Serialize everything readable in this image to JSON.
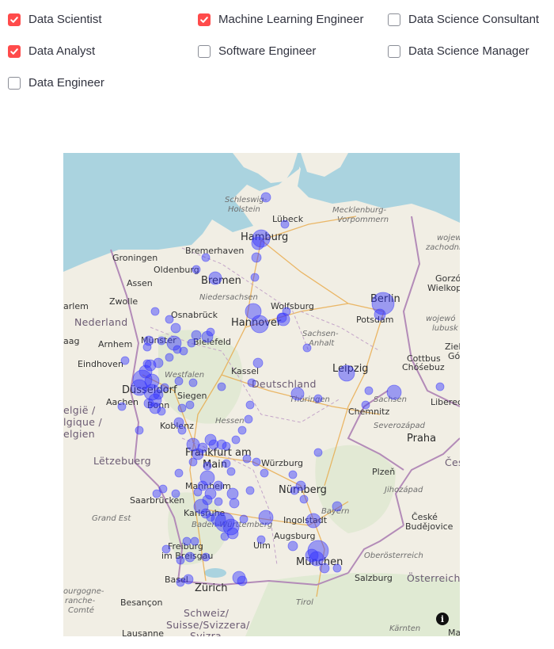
{
  "filters": [
    {
      "label": "Data Scientist",
      "checked": true
    },
    {
      "label": "Machine Learning Engineer",
      "checked": true
    },
    {
      "label": "Data Science Consultant",
      "checked": false
    },
    {
      "label": "Data Analyst",
      "checked": true
    },
    {
      "label": "Software Engineer",
      "checked": false
    },
    {
      "label": "Data Science Manager",
      "checked": false
    },
    {
      "label": "Data Engineer",
      "checked": false
    }
  ],
  "map": {
    "marker_color": "#3333ff",
    "info_icon": "info-icon",
    "labels": {
      "schleswig": "Schleswig-",
      "holstein": "Holstein",
      "luebeck": "Lübeck",
      "mecklenburg": "Mecklenburg-",
      "vorpommern": "Vorpommern",
      "hamburg": "Hamburg",
      "bremerhaven": "Bremerhaven",
      "groningen": "Groningen",
      "oldenburg": "Oldenburg",
      "bremen": "Bremen",
      "assen": "Assen",
      "zwolle": "Zwolle",
      "niedersachsen": "Niedersachsen",
      "wolfsburg": "Wolfsburg",
      "berlin": "Berlin",
      "potsdam": "Potsdam",
      "nederland": "Nederland",
      "osnabrueck": "Osnabrück",
      "hannover": "Hannover",
      "sachsen_anhalt_1": "Sachsen-",
      "sachsen_anhalt_2": "Anhalt",
      "arnhem": "Arnhem",
      "muenster": "Münster",
      "bielefeld": "Bielefeld",
      "eindhoven": "Eindhoven",
      "westfalen": "Westfalen",
      "kassel": "Kassel",
      "leipzig": "Leipzig",
      "cottbus": "Cottbus",
      "chosebuz": "Chóśebuz",
      "duesseldorf": "Düsseldorf",
      "deutschland": "Deutschland",
      "siegen": "Siegen",
      "sachsen": "Sachsen",
      "aachen": "Aachen",
      "bonn": "Bonn",
      "thueringen": "Thüringen",
      "chemnitz": "Chemnitz",
      "liberec": "Liberec",
      "belgie1": "elgië /",
      "belgie2": "lgique /",
      "belgie3": "elgien",
      "koblenz": "Koblenz",
      "hessen": "Hessen",
      "severozapad": "Severozápad",
      "praha": "Praha",
      "frankfurt": "Frankfurt am",
      "main": "Main",
      "letzebuerg": "Lëtzebuerg",
      "wuerzburg": "Würzburg",
      "plzen": "Plzeň",
      "mannheim": "Mannheim",
      "nuernberg": "Nürnberg",
      "saarbruecken": "Saarbrücken",
      "jihozapad": "Jihozápad",
      "karlsruhe": "Karlsruhe",
      "bayern": "Bayern",
      "grand_est": "Grand Est",
      "ingolstadt": "Ingolstadt",
      "baden": "Baden-Württemberg",
      "ceske1": "České",
      "ceske2": "Budějovice",
      "ulm": "Ulm",
      "augsburg": "Augsburg",
      "freiburg1": "Freiburg",
      "freiburg2": "im Breisgau",
      "oberoesterreich": "Oberösterreich",
      "muenchen": "München",
      "salzburg": "Salzburg",
      "basel": "Basel",
      "oesterreich": "Österreich",
      "zuerich": "Zürich",
      "bourgogne1": "ourgogne-",
      "bourgogne2": "ranche-",
      "bourgogne3": "Comté",
      "besancon": "Besançon",
      "tirol": "Tirol",
      "schweiz1": "Schweiz/",
      "schweiz2": "Suisse/Svizzera/",
      "schweiz3": "Svizra",
      "lausanne": "Lausanne",
      "kaernten": "Kärnten",
      "ma": "Ma",
      "arlem": "arlem",
      "aag": "aag",
      "gorzow1": "Gorzów",
      "gorzow2": "Wielkopo",
      "wojew1": "wojew",
      "wojew2": "zachodnio",
      "wojew3": "wojewó",
      "wojew4": "lubusk",
      "ziele1": "Ziele",
      "ziele2": "Gó",
      "ces": "Čes"
    }
  }
}
